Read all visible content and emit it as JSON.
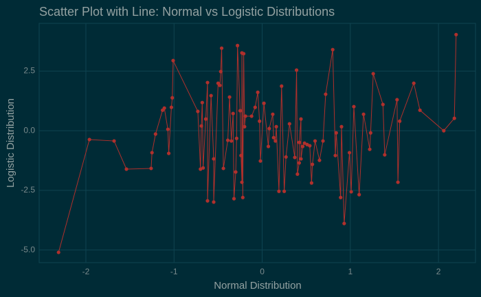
{
  "chart_data": {
    "type": "scatter-line",
    "title": "Scatter Plot with Line: Normal vs Logistic Distributions",
    "x_label": "Normal Distribution",
    "y_label": "Logistic Distribution",
    "x": [
      -2.31,
      -1.96,
      -1.68,
      -1.54,
      -1.26,
      -1.25,
      -1.21,
      -1.13,
      -1.11,
      -1.07,
      -1.06,
      -1.03,
      -1.02,
      -1.01,
      -0.73,
      -0.7,
      -0.69,
      -0.68,
      -0.67,
      -0.64,
      -0.62,
      -0.62,
      -0.58,
      -0.55,
      -0.55,
      -0.5,
      -0.48,
      -0.47,
      -0.46,
      -0.44,
      -0.39,
      -0.37,
      -0.35,
      -0.33,
      -0.32,
      -0.3,
      -0.29,
      -0.28,
      -0.25,
      -0.24,
      -0.23,
      -0.23,
      -0.22,
      -0.21,
      -0.2,
      -0.19,
      -0.12,
      -0.08,
      -0.05,
      -0.03,
      -0.02,
      0.02,
      0.07,
      0.08,
      0.12,
      0.13,
      0.15,
      0.16,
      0.19,
      0.22,
      0.25,
      0.27,
      0.31,
      0.37,
      0.39,
      0.4,
      0.42,
      0.42,
      0.44,
      0.44,
      0.46,
      0.48,
      0.51,
      0.54,
      0.56,
      0.57,
      0.6,
      0.65,
      0.69,
      0.72,
      0.8,
      0.83,
      0.84,
      0.89,
      0.9,
      0.93,
      0.99,
      1.01,
      1.04,
      1.1,
      1.15,
      1.22,
      1.23,
      1.26,
      1.37,
      1.39,
      1.53,
      1.54,
      1.56,
      1.72,
      1.79,
      2.06,
      2.18,
      2.2
    ],
    "series": [
      {
        "name": "Logistic",
        "color": "#b0302c",
        "values": [
          -5.1,
          -0.37,
          -0.43,
          -1.61,
          -1.58,
          -0.92,
          -0.14,
          0.86,
          0.95,
          0.06,
          -0.95,
          0.98,
          1.38,
          2.94,
          0.81,
          -1.61,
          0.2,
          1.18,
          -1.56,
          0.49,
          2.02,
          -2.94,
          1.47,
          -1.18,
          -2.99,
          1.99,
          1.9,
          2.48,
          3.46,
          -1.58,
          -0.4,
          1.41,
          -0.43,
          0.72,
          -2.85,
          -1.73,
          -0.32,
          3.57,
          0.84,
          -1.04,
          -2.16,
          3.26,
          -2.8,
          3.23,
          0.17,
          0.61,
          0.61,
          0.98,
          1.61,
          0.4,
          -1.27,
          1.15,
          -0.66,
          0.09,
          0.69,
          -0.29,
          -0.43,
          0.17,
          -2.54,
          1.87,
          -2.54,
          -1.1,
          0.29,
          -1.12,
          2.54,
          -1.82,
          -1.35,
          -0.49,
          0.49,
          -1.18,
          -0.66,
          -0.52,
          -0.58,
          -0.63,
          -2.19,
          -1.41,
          -0.43,
          -1.24,
          -0.43,
          1.53,
          3.4,
          -1.04,
          -0.09,
          -2.8,
          0.17,
          -3.89,
          -0.92,
          -2.56,
          1.01,
          -2.68,
          0.69,
          -0.78,
          -0.09,
          2.39,
          1.1,
          -1.01,
          1.3,
          -2.16,
          0.4,
          1.99,
          0.86,
          0.0,
          0.52,
          4.03
        ]
      }
    ],
    "xlim": [
      -2.53,
      2.42
    ],
    "ylim": [
      -5.53,
      4.5
    ],
    "xticks": [
      -2,
      -1,
      0,
      1,
      2
    ],
    "yticks": [
      {
        "value": -5,
        "label": "-5.0"
      },
      -2.5,
      {
        "value": 0,
        "label": "0.0"
      },
      2.5
    ],
    "grid": true
  }
}
